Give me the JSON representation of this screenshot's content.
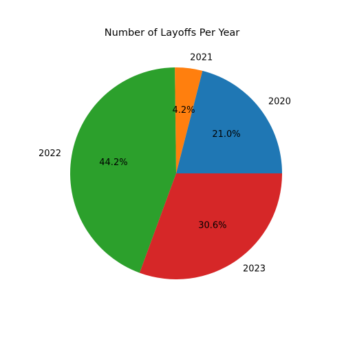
{
  "chart_data": {
    "type": "pie",
    "title": "Number of Layoffs Per Year",
    "categories": [
      "2020",
      "2021",
      "2022",
      "2023"
    ],
    "values": [
      21.0,
      4.2,
      44.2,
      30.6
    ],
    "value_labels": [
      "21.0%",
      "4.2%",
      "44.2%",
      "30.6%"
    ],
    "colors": [
      "#1f77b4",
      "#ff7f0e",
      "#2ca02c",
      "#d62728"
    ],
    "start_angle": "0° (3 o'clock)",
    "direction": "counterclockwise",
    "legend": "none"
  }
}
